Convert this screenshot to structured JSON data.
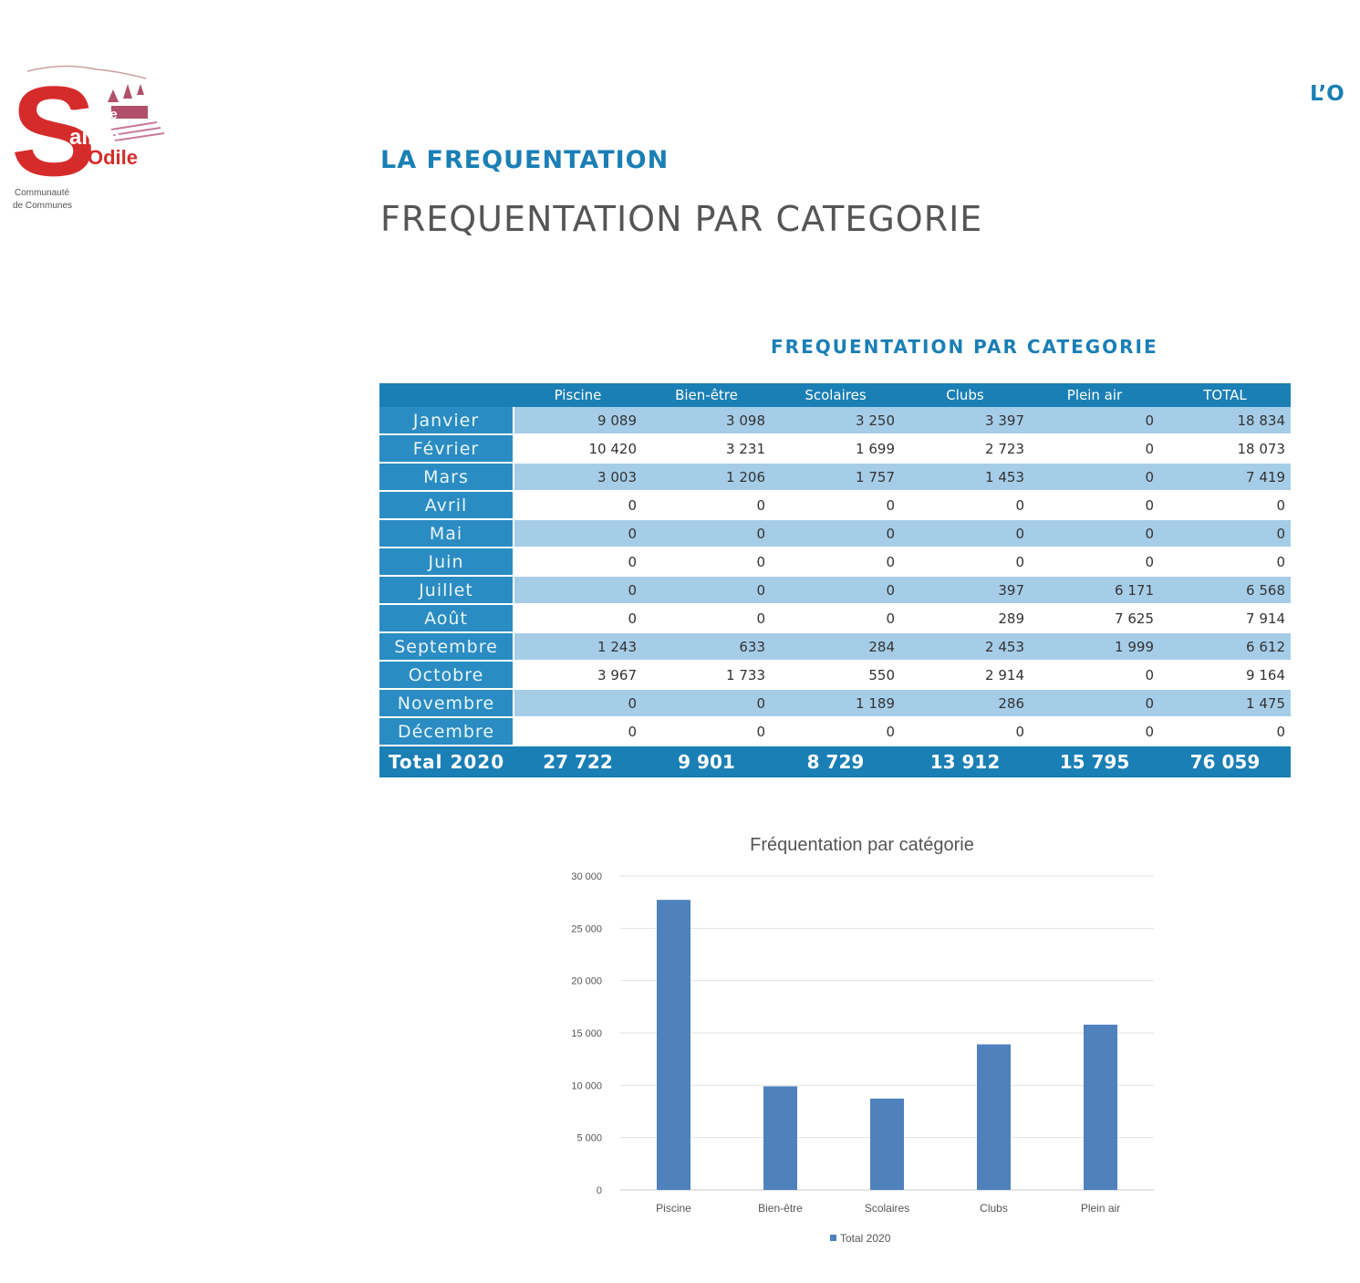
{
  "logo": {
    "line1": "Pays de",
    "line2": "ainte",
    "line3": "Odile",
    "caption1": "Communauté",
    "caption2": "de Communes"
  },
  "corner_text": "L’O",
  "section_title": "LA FREQUENTATION",
  "page_subtitle": "FREQUENTATION PAR CATEGORIE",
  "table": {
    "title": "FREQUENTATION PAR CATEGORIE",
    "columns": [
      "",
      "Piscine",
      "Bien-être",
      "Scolaires",
      "Clubs",
      "Plein air",
      "TOTAL"
    ],
    "rows": [
      {
        "month": "Janvier",
        "values": [
          "9 089",
          "3 098",
          "3 250",
          "3 397",
          "0",
          "18 834"
        ]
      },
      {
        "month": "Février",
        "values": [
          "10 420",
          "3 231",
          "1 699",
          "2 723",
          "0",
          "18 073"
        ]
      },
      {
        "month": "Mars",
        "values": [
          "3 003",
          "1 206",
          "1 757",
          "1 453",
          "0",
          "7 419"
        ]
      },
      {
        "month": "Avril",
        "values": [
          "0",
          "0",
          "0",
          "0",
          "0",
          "0"
        ]
      },
      {
        "month": "Mai",
        "values": [
          "0",
          "0",
          "0",
          "0",
          "0",
          "0"
        ]
      },
      {
        "month": "Juin",
        "values": [
          "0",
          "0",
          "0",
          "0",
          "0",
          "0"
        ]
      },
      {
        "month": "Juillet",
        "values": [
          "0",
          "0",
          "0",
          "397",
          "6 171",
          "6 568"
        ]
      },
      {
        "month": "Août",
        "values": [
          "0",
          "0",
          "0",
          "289",
          "7 625",
          "7 914"
        ]
      },
      {
        "month": "Septembre",
        "values": [
          "1 243",
          "633",
          "284",
          "2 453",
          "1 999",
          "6 612"
        ]
      },
      {
        "month": "Octobre",
        "values": [
          "3 967",
          "1 733",
          "550",
          "2 914",
          "0",
          "9 164"
        ]
      },
      {
        "month": "Novembre",
        "values": [
          "0",
          "0",
          "1 189",
          "286",
          "0",
          "1 475"
        ]
      },
      {
        "month": "Décembre",
        "values": [
          "0",
          "0",
          "0",
          "0",
          "0",
          "0"
        ]
      }
    ],
    "total_row": {
      "label": "Total 2020",
      "values": [
        "27 722",
        "9 901",
        "8 729",
        "13 912",
        "15 795",
        "76 059"
      ]
    }
  },
  "colors": {
    "accent": "#1a7fb5",
    "row_light": "#a6cde8",
    "bar": "#4f81bd",
    "logo_red": "#d62b2b"
  },
  "chart_data": {
    "type": "bar",
    "title": "Fréquentation par catégorie",
    "categories": [
      "Piscine",
      "Bien-être",
      "Scolaires",
      "Clubs",
      "Plein air"
    ],
    "series": [
      {
        "name": "Total 2020",
        "values": [
          27722,
          9901,
          8729,
          13912,
          15795
        ]
      }
    ],
    "ylim": [
      0,
      30000
    ],
    "yticks": [
      0,
      5000,
      10000,
      15000,
      20000,
      25000,
      30000
    ],
    "ytick_labels": [
      "0",
      "5 000",
      "10 000",
      "15 000",
      "20 000",
      "25 000",
      "30 000"
    ],
    "grid": true,
    "legend": "bottom"
  }
}
